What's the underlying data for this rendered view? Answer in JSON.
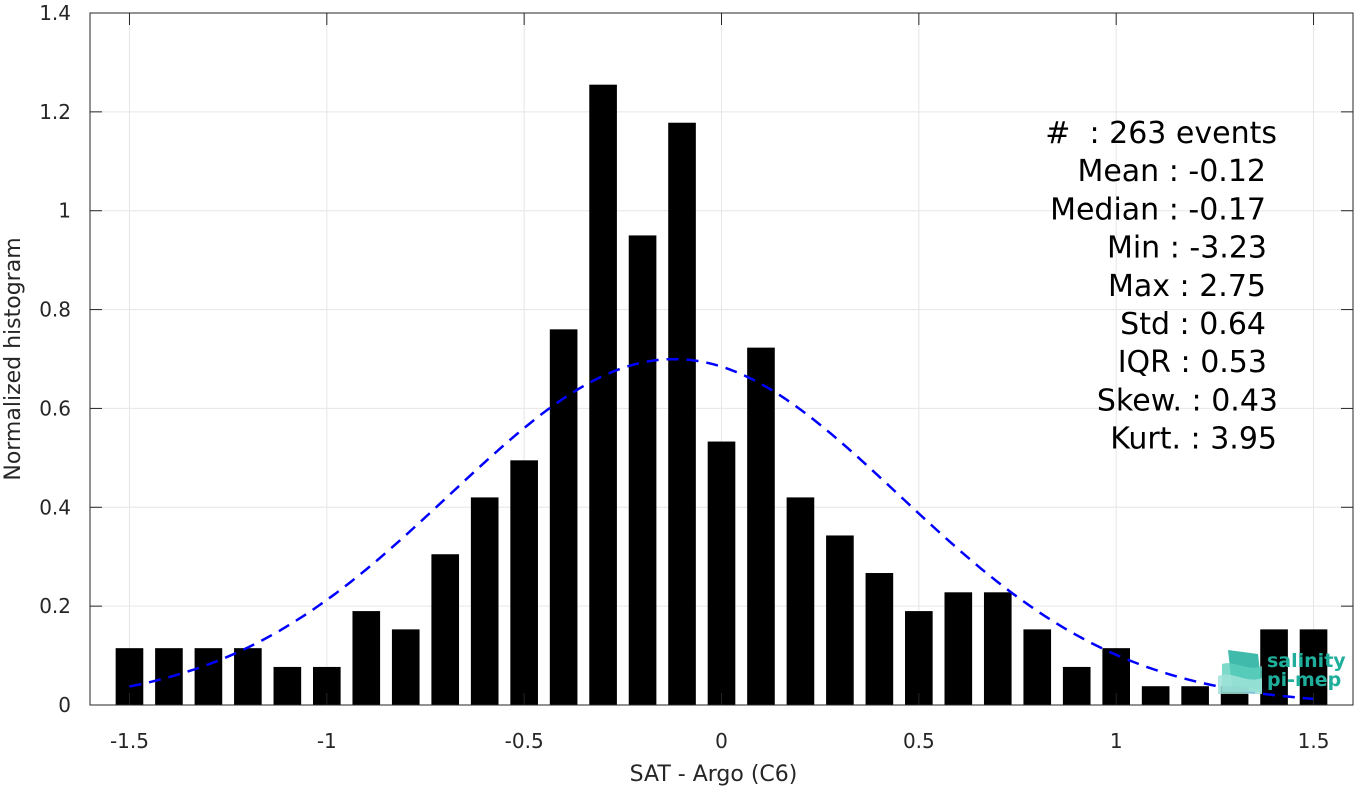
{
  "chart_data": {
    "type": "bar",
    "xlabel": "SAT - Argo (C6)",
    "ylabel": "Normalized histogram",
    "xlim": [
      -1.6,
      1.6
    ],
    "ylim": [
      0,
      1.4
    ],
    "xticks": [
      -1.5,
      -1,
      -0.5,
      0,
      0.5,
      1,
      1.5
    ],
    "xtick_labels": [
      "-1.5",
      "-1",
      "-0.5",
      "0",
      "0.5",
      "1",
      "1.5"
    ],
    "yticks": [
      0,
      0.2,
      0.4,
      0.6,
      0.8,
      1,
      1.2,
      1.4
    ],
    "ytick_labels": [
      "0",
      "0.2",
      "0.4",
      "0.6",
      "0.8",
      "1",
      "1.2",
      "1.4"
    ],
    "grid": true,
    "bar_width": 0.07,
    "bar_color": "#000000",
    "x": [
      -1.5,
      -1.4,
      -1.3,
      -1.2,
      -1.1,
      -1.0,
      -0.9,
      -0.8,
      -0.7,
      -0.6,
      -0.5,
      -0.4,
      -0.3,
      -0.2,
      -0.1,
      0.0,
      0.1,
      0.2,
      0.3,
      0.4,
      0.5,
      0.6,
      0.7,
      0.8,
      0.9,
      1.0,
      1.1,
      1.2,
      1.3,
      1.4,
      1.5
    ],
    "values": [
      0.115,
      0.115,
      0.115,
      0.115,
      0.077,
      0.077,
      0.19,
      0.153,
      0.305,
      0.42,
      0.495,
      0.76,
      1.255,
      0.95,
      1.178,
      0.533,
      0.723,
      0.42,
      0.343,
      0.267,
      0.19,
      0.228,
      0.228,
      0.153,
      0.077,
      0.115,
      0.038,
      0.038,
      0.038,
      0.153,
      0.153
    ],
    "fit": {
      "type": "gaussian",
      "mean": -0.12,
      "std": 0.57,
      "style": "dashed",
      "color": "#0000ff"
    },
    "stats": [
      {
        "label": "#  ",
        "value": "263 events"
      },
      {
        "label": "Mean ",
        "value": "-0.12"
      },
      {
        "label": "Median ",
        "value": "-0.17"
      },
      {
        "label": "Min ",
        "value": "-3.23"
      },
      {
        "label": "Max ",
        "value": "2.75"
      },
      {
        "label": "Std ",
        "value": "0.64"
      },
      {
        "label": "IQR ",
        "value": "0.53"
      },
      {
        "label": "Skew. ",
        "value": "0.43"
      },
      {
        "label": "Kurt. ",
        "value": "3.95"
      }
    ]
  },
  "logo": {
    "line1": "salinity",
    "line2": "pi-mep",
    "color": "#1fae9b"
  }
}
